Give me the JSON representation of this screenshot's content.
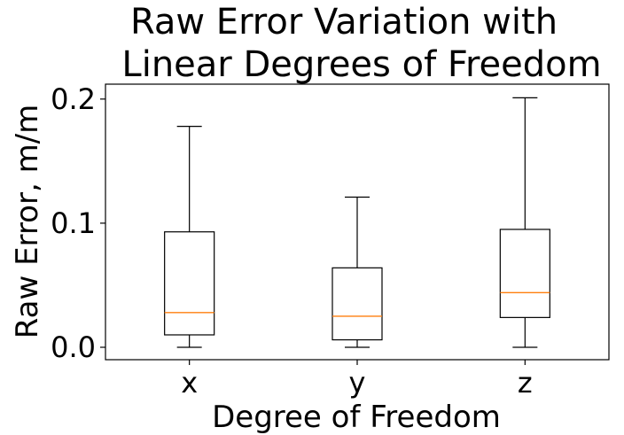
{
  "chart_data": {
    "type": "boxplot",
    "title_lines": [
      "Raw Error Variation with",
      "Linear Degrees of Freedom"
    ],
    "xlabel": "Degree of Freedom",
    "ylabel": "Raw Error, m/m",
    "categories": [
      "x",
      "y",
      "z"
    ],
    "yticks": [
      {
        "value": 0.0,
        "label": "0.0"
      },
      {
        "value": 0.1,
        "label": "0.1"
      },
      {
        "value": 0.2,
        "label": "0.2"
      }
    ],
    "ylim": [
      -0.01,
      0.212
    ],
    "grid": false,
    "boxes": [
      {
        "category": "x",
        "whisker_low": 0.0,
        "q1": 0.01,
        "median": 0.028,
        "q3": 0.093,
        "whisker_high": 0.178
      },
      {
        "category": "y",
        "whisker_low": 0.0,
        "q1": 0.006,
        "median": 0.025,
        "q3": 0.064,
        "whisker_high": 0.121
      },
      {
        "category": "z",
        "whisker_low": 0.0,
        "q1": 0.024,
        "median": 0.044,
        "q3": 0.095,
        "whisker_high": 0.201
      }
    ],
    "colors": {
      "box": "#000000",
      "median": "#ff7f0e",
      "background": "#ffffff"
    }
  }
}
